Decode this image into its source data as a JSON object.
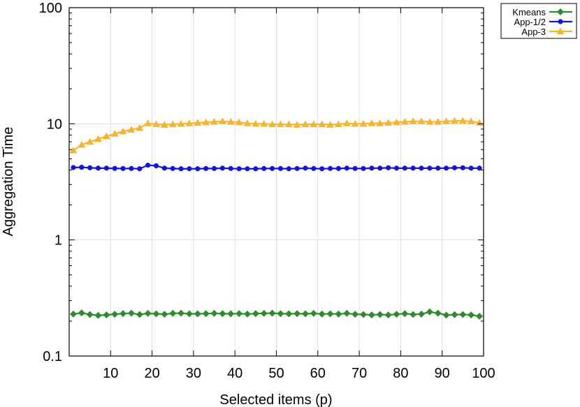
{
  "chart_data": {
    "type": "line",
    "title": "",
    "xlabel": "Selected items (p)",
    "ylabel": "Aggregation Time",
    "xlim": [
      0,
      100
    ],
    "ylim": [
      0.1,
      100
    ],
    "yscale": "log",
    "grid": true,
    "legend_position": "top-right-outside",
    "x_ticks": [
      10,
      20,
      30,
      40,
      50,
      60,
      70,
      80,
      90,
      100
    ],
    "x_tick_labels": [
      "10",
      "20",
      "30",
      "40",
      "50",
      "60",
      "70",
      "80",
      "90",
      "100"
    ],
    "y_ticks": [
      0.1,
      1,
      10,
      100
    ],
    "y_tick_labels": [
      "0.1",
      "1",
      "10",
      "100"
    ],
    "x": [
      1,
      3,
      5,
      7,
      9,
      11,
      13,
      15,
      17,
      19,
      21,
      23,
      25,
      27,
      29,
      31,
      33,
      35,
      37,
      39,
      41,
      43,
      45,
      47,
      49,
      51,
      53,
      55,
      57,
      59,
      61,
      63,
      65,
      67,
      69,
      71,
      73,
      75,
      77,
      79,
      81,
      83,
      85,
      87,
      89,
      91,
      93,
      95,
      97,
      99
    ],
    "series": [
      {
        "name": "Kmeans",
        "color": "#2e8b2e",
        "marker": "diamond",
        "values": [
          0.23,
          0.235,
          0.228,
          0.224,
          0.226,
          0.229,
          0.232,
          0.234,
          0.228,
          0.233,
          0.231,
          0.229,
          0.233,
          0.234,
          0.231,
          0.231,
          0.232,
          0.233,
          0.232,
          0.231,
          0.232,
          0.23,
          0.232,
          0.233,
          0.234,
          0.232,
          0.231,
          0.232,
          0.231,
          0.233,
          0.23,
          0.231,
          0.23,
          0.233,
          0.229,
          0.228,
          0.226,
          0.228,
          0.226,
          0.229,
          0.232,
          0.228,
          0.23,
          0.24,
          0.234,
          0.225,
          0.227,
          0.228,
          0.226,
          0.22
        ]
      },
      {
        "name": "App-1/2",
        "color": "#1515d6",
        "marker": "circle",
        "values": [
          4.2,
          4.22,
          4.18,
          4.15,
          4.15,
          4.13,
          4.12,
          4.12,
          4.1,
          4.4,
          4.35,
          4.15,
          4.12,
          4.1,
          4.1,
          4.1,
          4.12,
          4.12,
          4.15,
          4.12,
          4.1,
          4.1,
          4.1,
          4.12,
          4.12,
          4.12,
          4.1,
          4.12,
          4.15,
          4.12,
          4.1,
          4.12,
          4.12,
          4.15,
          4.12,
          4.12,
          4.15,
          4.15,
          4.18,
          4.15,
          4.15,
          4.15,
          4.15,
          4.15,
          4.15,
          4.15,
          4.18,
          4.18,
          4.15,
          4.15
        ]
      },
      {
        "name": "App-3",
        "color": "#f5b531",
        "marker": "triangle",
        "values": [
          5.9,
          6.6,
          7.0,
          7.4,
          7.8,
          8.2,
          8.6,
          8.9,
          9.2,
          10.1,
          9.9,
          9.8,
          9.9,
          10.0,
          10.1,
          10.2,
          10.3,
          10.4,
          10.5,
          10.4,
          10.3,
          10.1,
          10.0,
          10.0,
          9.9,
          9.9,
          9.9,
          9.8,
          9.9,
          9.9,
          9.9,
          9.8,
          9.9,
          10.1,
          10.0,
          10.0,
          10.1,
          10.1,
          10.2,
          10.3,
          10.4,
          10.5,
          10.5,
          10.4,
          10.4,
          10.5,
          10.6,
          10.6,
          10.5,
          10.2
        ]
      }
    ]
  }
}
